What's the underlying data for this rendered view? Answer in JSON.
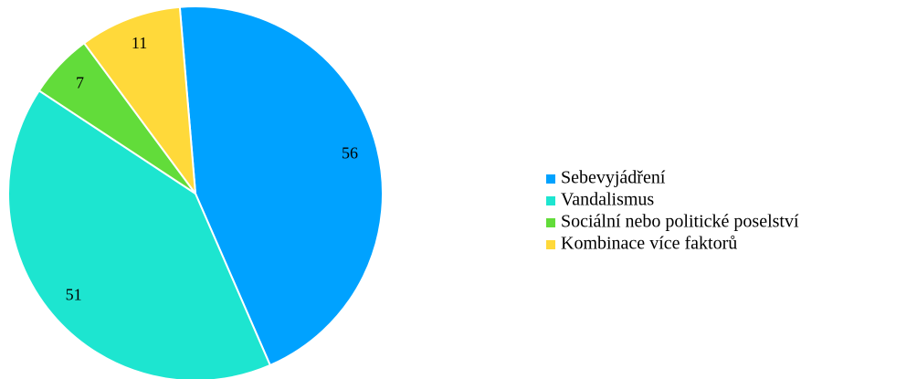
{
  "chart_data": {
    "type": "pie",
    "categories": [
      "Sebevyjádření",
      "Vandalismus",
      "Sociální nebo politické poselství",
      "Kombinace více faktorů"
    ],
    "values": [
      56,
      51,
      7,
      11
    ],
    "colors": [
      "#00a2ff",
      "#1de5d0",
      "#62dc3a",
      "#ffd93a"
    ],
    "legend": "right"
  }
}
